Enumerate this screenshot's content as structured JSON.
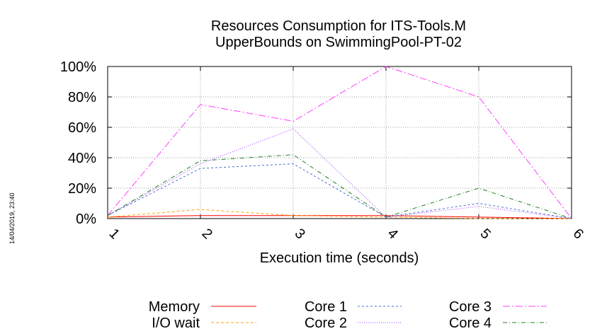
{
  "chart_data": {
    "type": "line",
    "title_lines": [
      "Resources Consumption for ITS-Tools.M",
      "UpperBounds on SwimmingPool-PT-02"
    ],
    "xlabel": "Execution time (seconds)",
    "ylabel": "",
    "x": [
      1,
      2,
      3,
      4,
      5,
      6
    ],
    "x_ticks": [
      "1",
      "2",
      "3",
      "4",
      "5",
      "6"
    ],
    "xlim": [
      1,
      6
    ],
    "y_ticks": [
      {
        "value": 0,
        "label": "0%"
      },
      {
        "value": 20,
        "label": "20%"
      },
      {
        "value": 40,
        "label": "40%"
      },
      {
        "value": 60,
        "label": "60%"
      },
      {
        "value": 80,
        "label": "80%"
      },
      {
        "value": 100,
        "label": "100%"
      }
    ],
    "ylim": [
      0,
      100
    ],
    "grid": true,
    "legend_placement": "bottom",
    "timestamp": "14/04/2019, 23:40",
    "series": [
      {
        "name": "Memory",
        "color": "#ff0000",
        "dash": "",
        "values": [
          1,
          2,
          2,
          2,
          1,
          0
        ]
      },
      {
        "name": "I/O wait",
        "color": "#ffa500",
        "dash": "4,3",
        "values": [
          1,
          6,
          2,
          1,
          0,
          0
        ]
      },
      {
        "name": "Core 1",
        "color": "#4a6fd0",
        "dash": "3,3",
        "values": [
          2,
          33,
          36,
          1,
          10,
          0
        ]
      },
      {
        "name": "Core 2",
        "color": "#a040ff",
        "dash": "1,2",
        "values": [
          2,
          36,
          59,
          1,
          8,
          0
        ]
      },
      {
        "name": "Core 3",
        "color": "#ff40ff",
        "dash": "10,3,2,3",
        "values": [
          2,
          75,
          64,
          100,
          80,
          0
        ]
      },
      {
        "name": "Core 4",
        "color": "#208020",
        "dash": "6,3,1,3",
        "values": [
          2,
          38,
          42,
          1,
          20,
          0
        ]
      }
    ]
  }
}
